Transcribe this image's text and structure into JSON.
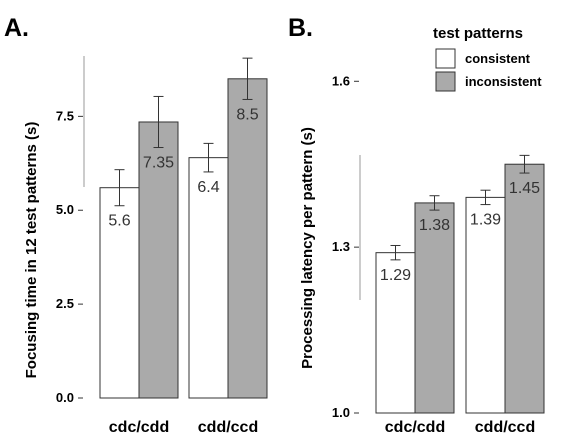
{
  "chart_data": [
    {
      "type": "bar",
      "panel_label": "A.",
      "ylabel": "Focusing time in 12 test patterns (s)",
      "categories": [
        "cdc/cdd",
        "cdd/ccd"
      ],
      "yticks": [
        "0.0",
        "2.5",
        "5.0",
        "7.5"
      ],
      "ylim": [
        0,
        9.4
      ],
      "series": [
        {
          "name": "consistent",
          "values": [
            5.6,
            6.4
          ],
          "errors": [
            0.48,
            0.38
          ],
          "labels": [
            "5.6",
            "6.4"
          ]
        },
        {
          "name": "inconsistent",
          "values": [
            7.35,
            8.5
          ],
          "errors": [
            0.68,
            0.55
          ],
          "labels": [
            "7.35",
            "8.5"
          ]
        }
      ]
    },
    {
      "type": "bar",
      "panel_label": "B.",
      "ylabel": "Processing latency per pattern (s)",
      "categories": [
        "cdc/cdd",
        "cdd/ccd"
      ],
      "yticks": [
        "1.0",
        "1.3",
        "1.6"
      ],
      "ylim": [
        1.0,
        1.7
      ],
      "series": [
        {
          "name": "consistent",
          "values": [
            1.29,
            1.39
          ],
          "errors": [
            0.013,
            0.013
          ],
          "labels": [
            "1.29",
            "1.39"
          ]
        },
        {
          "name": "inconsistent",
          "values": [
            1.38,
            1.45
          ],
          "errors": [
            0.013,
            0.016
          ],
          "labels": [
            "1.38",
            "1.45"
          ]
        }
      ]
    }
  ],
  "legend": {
    "title": "test patterns",
    "items": [
      {
        "label": "consistent",
        "color": "#ffffff"
      },
      {
        "label": "inconsistent",
        "color": "#aaaaaa"
      }
    ]
  },
  "colors": {
    "consistent": "#ffffff",
    "inconsistent": "#aaaaaa",
    "stroke": "#333333"
  }
}
